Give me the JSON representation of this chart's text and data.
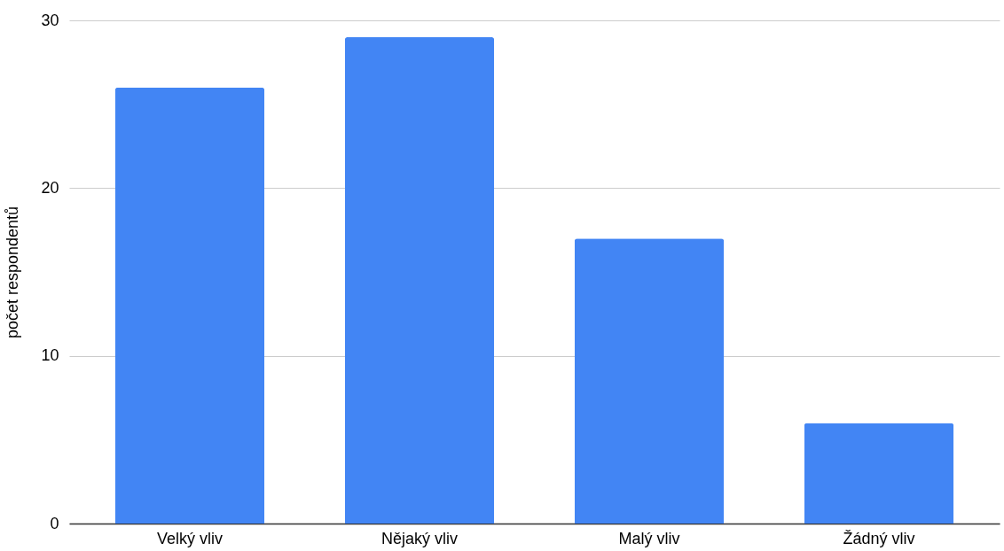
{
  "chart_data": {
    "type": "bar",
    "ylabel": "počet respondentů",
    "categories": [
      "Velký vliv",
      "Nějaký vliv",
      "Malý vliv",
      "Žádný vliv"
    ],
    "values": [
      26,
      29,
      17,
      6
    ],
    "color": "#4285f4",
    "ylim": [
      0,
      30
    ],
    "yticks": [
      0,
      10,
      20,
      30
    ],
    "grid": "y"
  }
}
